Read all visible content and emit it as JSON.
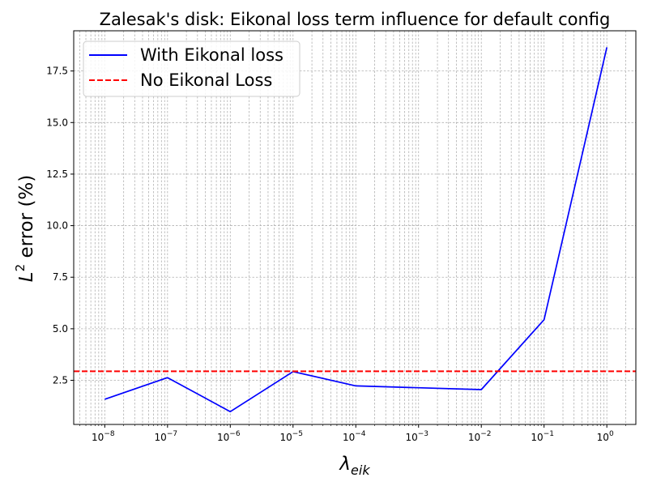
{
  "chart_data": {
    "type": "line",
    "title": "Zalesak's disk: Eikonal loss term influence for default config",
    "xlabel_base": "λ",
    "xlabel_sub": "eik",
    "ylabel_base": "L",
    "ylabel_sup": "2",
    "ylabel_rest": " error (%)",
    "xscale": "log",
    "xlim": [
      3.2e-09,
      2.9
    ],
    "ylim": [
      0.36,
      19.45
    ],
    "grid": true,
    "legend_position": "upper left",
    "x_ticks": [
      {
        "exp": "−8"
      },
      {
        "exp": "−7"
      },
      {
        "exp": "−6"
      },
      {
        "exp": "−5"
      },
      {
        "exp": "−4"
      },
      {
        "exp": "−3"
      },
      {
        "exp": "−2"
      },
      {
        "exp": "−1"
      },
      {
        "exp": "0"
      }
    ],
    "y_tick_labels": [
      "2.5",
      "5.0",
      "7.5",
      "10.0",
      "12.5",
      "15.0",
      "17.5"
    ],
    "y_tick_values": [
      2.5,
      5.0,
      7.5,
      10.0,
      12.5,
      15.0,
      17.5
    ],
    "series": [
      {
        "name": "With Eikonal loss",
        "color": "#0000ff",
        "style": "solid",
        "x": [
          1e-08,
          1e-07,
          1e-06,
          1e-05,
          0.0001,
          0.01,
          0.1,
          1
        ],
        "y": [
          1.58,
          2.63,
          0.98,
          2.92,
          2.23,
          2.05,
          5.44,
          18.65
        ]
      },
      {
        "name": "No Eikonal Loss",
        "color": "#ff0000",
        "style": "dashed",
        "hline": 2.94
      }
    ]
  }
}
